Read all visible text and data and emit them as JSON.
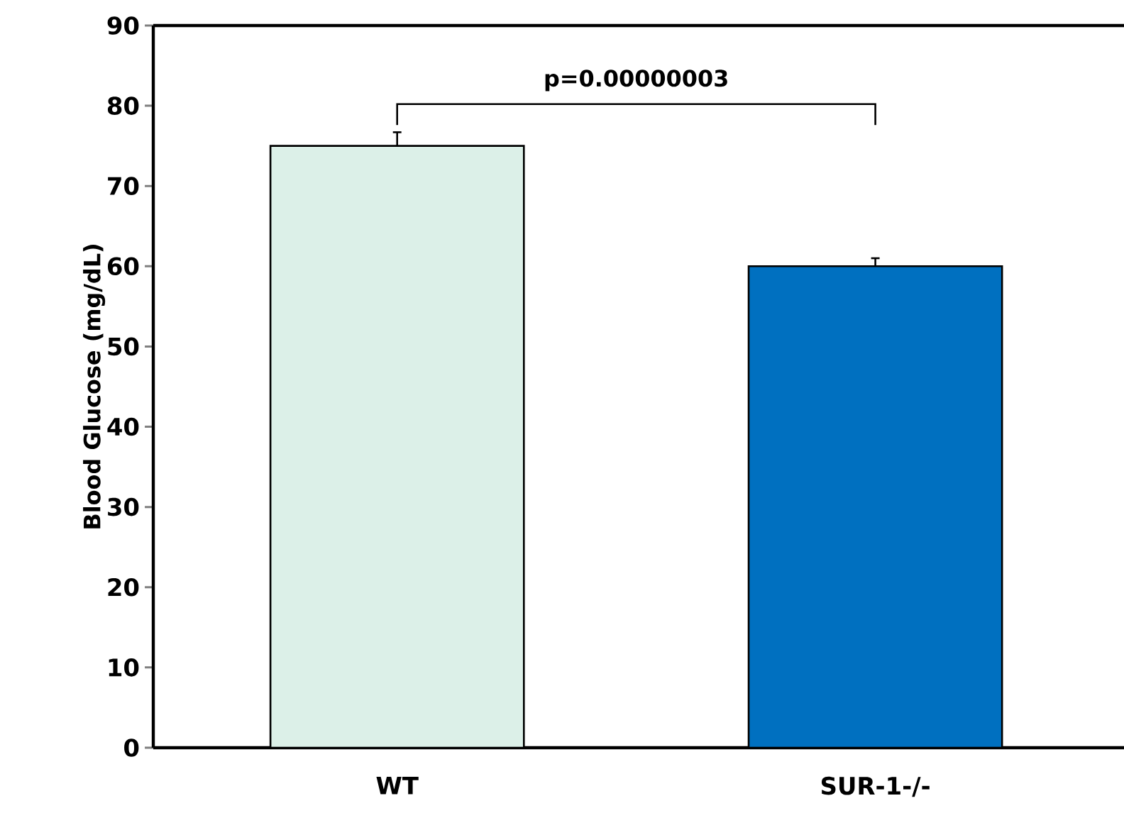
{
  "chart_data": {
    "type": "bar",
    "ylabel": "Blood Glucose (mg/dL)",
    "categories": [
      "WT",
      "SUR-1-/-"
    ],
    "values": [
      75,
      60
    ],
    "errors": [
      1.7,
      1.0
    ],
    "colors": [
      "#dcf0e8",
      "#0070c0"
    ],
    "ylim": [
      0,
      90
    ],
    "yticks": [
      0,
      10,
      20,
      30,
      40,
      50,
      60,
      70,
      80,
      90
    ],
    "annotations": [
      "p=0.00000003"
    ]
  }
}
